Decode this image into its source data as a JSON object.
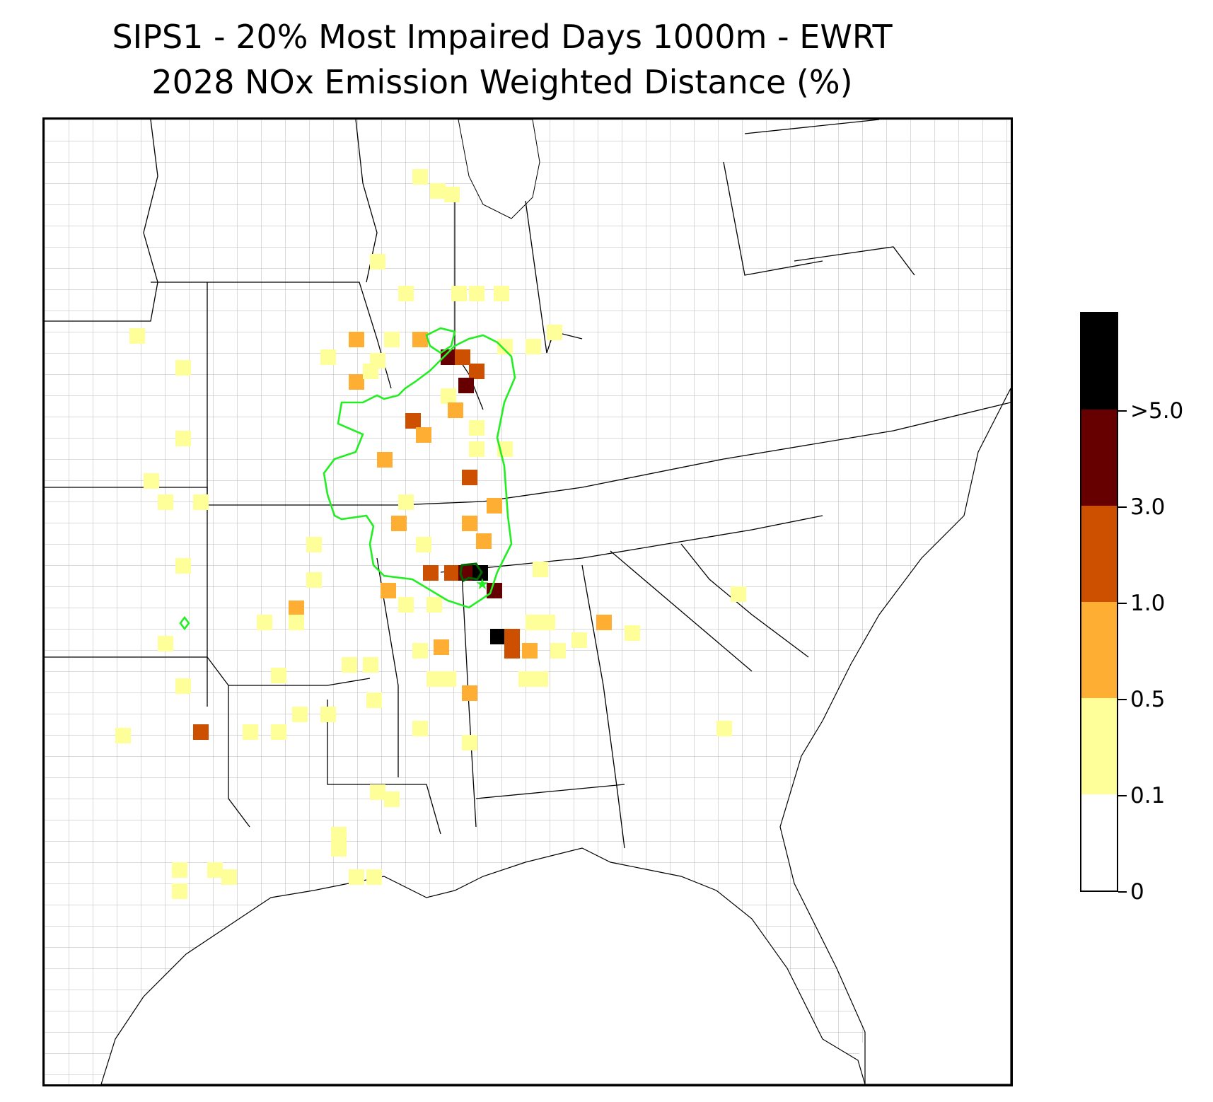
{
  "title": {
    "line1": "SIPS1 - 20% Most Impaired Days 1000m - EWRT",
    "line2": "2028 NOx Emission Weighted Distance (%)"
  },
  "colors": {
    "bin_0_0.1": "#ffffff",
    "bin_0.1_0.5": "#ffff99",
    "bin_0.5_1.0": "#fdae33",
    "bin_1.0_3.0": "#cc5000",
    "bin_3.0_5.0": "#660000",
    "bin_gt5.0": "#000000",
    "contour_outer": "#22ee22",
    "contour_inner": "#006400",
    "county_lines": "#999999",
    "state_lines": "#000000"
  },
  "colorbar": {
    "tick_labels": [
      "0",
      "0.1",
      "0.5",
      "1.0",
      "3.0",
      ">5.0"
    ]
  },
  "map": {
    "region": "Southeastern United States",
    "source_marker": "green-star-icon"
  }
}
